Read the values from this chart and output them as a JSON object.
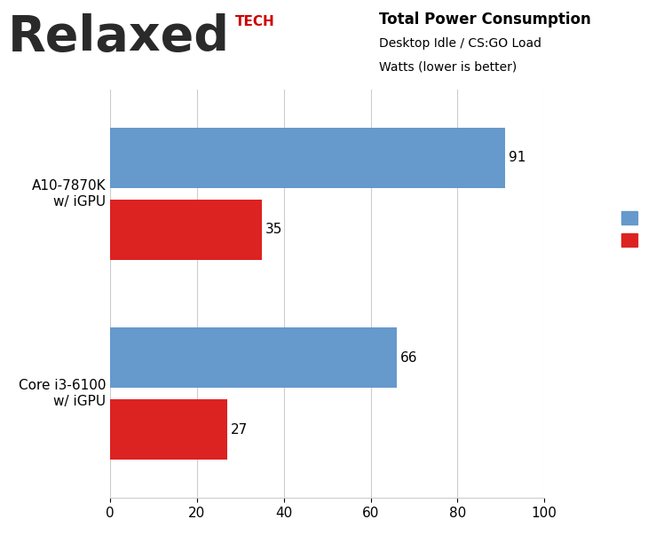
{
  "title": "Total Power Consumption",
  "subtitle1": "Desktop Idle / CS:GO Load",
  "subtitle2": "Watts (lower is better)",
  "categories": [
    "A10-7870K\nw/ iGPU",
    "Core i3-6100\nw/ iGPU"
  ],
  "load_values": [
    91,
    66
  ],
  "idle_values": [
    35,
    27
  ],
  "load_color": "#6699CC",
  "idle_color": "#DD2222",
  "xlim": [
    0,
    100
  ],
  "xticks": [
    0,
    20,
    40,
    60,
    80,
    100
  ],
  "bar_height": 0.3,
  "bg_color": "#FFFFFF",
  "plot_bg_color": "#FFFFFF",
  "header_bg_color": "#F0F0F0",
  "grid_color": "#CCCCCC",
  "separator_color": "#BBBBBB",
  "value_fontsize": 11,
  "label_fontsize": 11,
  "legend_fontsize": 11,
  "title_fontsize": 12,
  "subtitle_fontsize": 10,
  "relaxed_fontsize": 40,
  "tech_fontsize": 11,
  "logo_text_color": "#2A2A2A",
  "tech_color": "#CC0000"
}
